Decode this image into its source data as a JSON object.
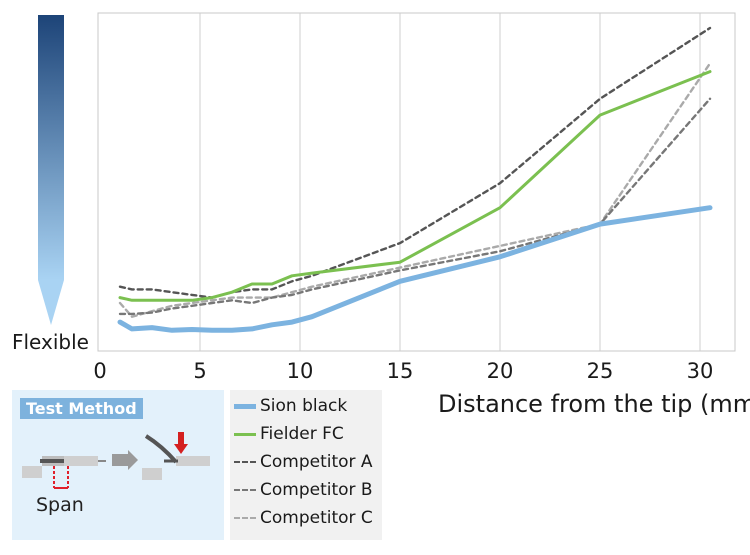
{
  "chart_data": {
    "type": "line",
    "xlabel": "Distance from the tip (mm)",
    "ylabel": "",
    "y_low_label": "Flexible",
    "xlim": [
      0,
      32
    ],
    "ylim": [
      0,
      100
    ],
    "x_ticks": [
      "0",
      "5",
      "10",
      "15",
      "20",
      "25",
      "30"
    ],
    "x_tick_values": [
      0,
      5,
      10,
      15,
      20,
      25,
      30
    ],
    "grid": "vertical",
    "legend_position": "bottom",
    "series": [
      {
        "name": "Sion black",
        "color": "#7cb3e0",
        "style": "solid-thick",
        "x": [
          1,
          1.6,
          2.6,
          3.6,
          4.6,
          5.6,
          6.6,
          7.6,
          8.6,
          9.6,
          10.6,
          15,
          20,
          25,
          30.5
        ],
        "y": [
          4,
          1.5,
          2,
          1,
          1.3,
          1,
          1,
          1.5,
          3,
          4,
          6,
          19,
          28,
          40,
          46
        ]
      },
      {
        "name": "Fielder FC",
        "color": "#7bc050",
        "style": "solid",
        "x": [
          1,
          1.6,
          2.6,
          3.6,
          4.6,
          5.6,
          6.6,
          7.6,
          8.6,
          9.6,
          10.6,
          15,
          20,
          25,
          30.5
        ],
        "y": [
          13,
          12,
          12,
          12,
          12,
          13,
          15,
          18,
          18,
          21,
          22,
          26,
          46,
          80,
          96
        ]
      },
      {
        "name": "Competitor A",
        "color": "#555555",
        "style": "dash",
        "x": [
          1,
          1.6,
          2.6,
          3.6,
          4.6,
          5.6,
          6.6,
          7.6,
          8.6,
          9.6,
          10.6,
          15,
          20,
          25,
          30.5
        ],
        "y": [
          17,
          16,
          16,
          15,
          14,
          13,
          15,
          16,
          16,
          19,
          21,
          33,
          55,
          86,
          112
        ]
      },
      {
        "name": "Competitor B",
        "color": "#777777",
        "style": "dash",
        "x": [
          1,
          1.6,
          2.6,
          3.6,
          4.6,
          5.6,
          6.6,
          7.6,
          8.6,
          9.6,
          10.6,
          15,
          20,
          25,
          30.5
        ],
        "y": [
          7,
          7,
          7.5,
          9,
          10,
          11,
          12,
          11,
          13,
          14,
          16,
          23,
          30,
          40,
          86
        ]
      },
      {
        "name": "Competitor C",
        "color": "#aaaaaa",
        "style": "dash-light",
        "x": [
          1,
          1.6,
          2.6,
          3.6,
          4.6,
          5.6,
          6.6,
          7.6,
          8.6,
          9.6,
          10.6,
          15,
          20,
          25,
          30.5
        ],
        "y": [
          11,
          6,
          8,
          10,
          11,
          12,
          13,
          13,
          13,
          15,
          17,
          24,
          32,
          40,
          99
        ]
      }
    ]
  },
  "test_method": {
    "title": "Test Method",
    "span_label": "Span"
  }
}
